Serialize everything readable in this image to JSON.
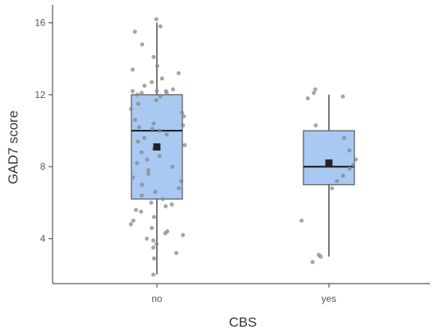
{
  "chart_data": {
    "type": "boxplot",
    "xlabel": "CBS",
    "ylabel": "GAD7 score",
    "categories": [
      "no",
      "yes"
    ],
    "ylim": [
      1.5,
      17
    ],
    "yticks": [
      4,
      8,
      12,
      16
    ],
    "box_fill_color": "#a9c8f2",
    "groups": [
      {
        "name": "no",
        "whisker_low": 2,
        "q1": 6.2,
        "median": 10,
        "q3": 12,
        "whisker_high": 16,
        "mean": 9.1,
        "points": [
          16.2,
          15.8,
          15.5,
          14.8,
          14.1,
          13.6,
          13.4,
          13.2,
          12.9,
          12.7,
          12.5,
          12.3,
          12.2,
          12.2,
          12.2,
          12.1,
          12.1,
          12.0,
          11.9,
          11.7,
          11.5,
          11.2,
          11.0,
          10.8,
          10.6,
          10.4,
          10.3,
          10.2,
          10.1,
          10.0,
          9.8,
          9.6,
          9.4,
          9.2,
          9.0,
          8.8,
          8.6,
          8.4,
          8.2,
          8.0,
          7.8,
          7.6,
          7.4,
          7.2,
          7.0,
          6.8,
          6.6,
          6.4,
          6.2,
          6.0,
          5.9,
          5.8,
          5.6,
          5.5,
          5.2,
          5.0,
          4.8,
          4.6,
          4.4,
          4.3,
          4.2,
          4.0,
          3.9,
          3.7,
          3.5,
          3.2,
          2.9,
          2.0
        ]
      },
      {
        "name": "yes",
        "whisker_low": 3,
        "q1": 7,
        "median": 8,
        "q3": 10,
        "whisker_high": 12,
        "mean": 8.2,
        "points": [
          12.3,
          12.1,
          11.9,
          11.8,
          10.3,
          9.6,
          8.9,
          8.4,
          8.1,
          7.9,
          7.5,
          7.2,
          6.8,
          5.0,
          3.1,
          3.0,
          2.7
        ]
      }
    ]
  }
}
